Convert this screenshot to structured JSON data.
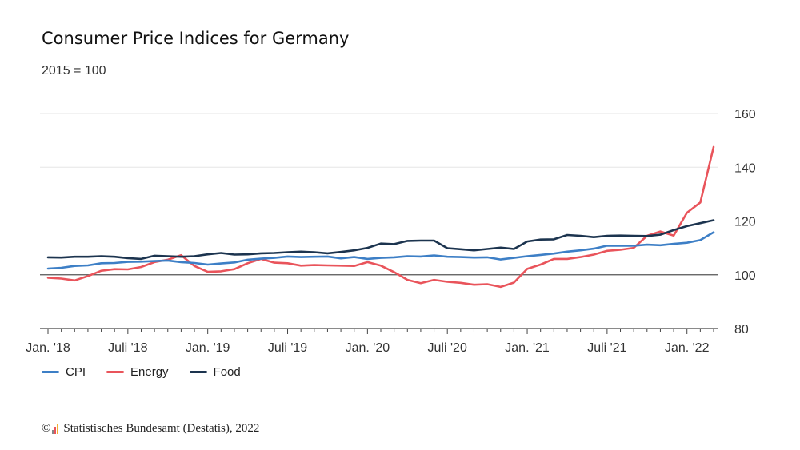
{
  "title": "Consumer Price Indices for Germany",
  "subtitle": "2015 = 100",
  "source": {
    "copyright_symbol": "©",
    "text": "Statistisches Bundesamt (Destatis), 2022"
  },
  "legend": [
    {
      "name": "CPI",
      "color": "#3d7fc6"
    },
    {
      "name": "Energy",
      "color": "#e9545b"
    },
    {
      "name": "Food",
      "color": "#1c344f"
    }
  ],
  "chart_data": {
    "type": "line",
    "title": "Consumer Price Indices for Germany",
    "subtitle": "2015 = 100",
    "ylim": [
      80,
      160
    ],
    "yticks": [
      80,
      100,
      120,
      140,
      160
    ],
    "y_axis_side": "right",
    "reference_line": 100,
    "grid": "horizontal",
    "legend_position": "bottom-left",
    "x": [
      "2018-01",
      "2018-02",
      "2018-03",
      "2018-04",
      "2018-05",
      "2018-06",
      "2018-07",
      "2018-08",
      "2018-09",
      "2018-10",
      "2018-11",
      "2018-12",
      "2019-01",
      "2019-02",
      "2019-03",
      "2019-04",
      "2019-05",
      "2019-06",
      "2019-07",
      "2019-08",
      "2019-09",
      "2019-10",
      "2019-11",
      "2019-12",
      "2020-01",
      "2020-02",
      "2020-03",
      "2020-04",
      "2020-05",
      "2020-06",
      "2020-07",
      "2020-08",
      "2020-09",
      "2020-10",
      "2020-11",
      "2020-12",
      "2021-01",
      "2021-02",
      "2021-03",
      "2021-04",
      "2021-05",
      "2021-06",
      "2021-07",
      "2021-08",
      "2021-09",
      "2021-10",
      "2021-11",
      "2021-12",
      "2022-01",
      "2022-02",
      "2022-03"
    ],
    "x_tick_labels": [
      {
        "label": "Jan. '18",
        "index": 0
      },
      {
        "label": "Juli '18",
        "index": 6
      },
      {
        "label": "Jan. '19",
        "index": 12
      },
      {
        "label": "Juli '19",
        "index": 18
      },
      {
        "label": "Jan. '20",
        "index": 24
      },
      {
        "label": "Juli '20",
        "index": 30
      },
      {
        "label": "Jan. '21",
        "index": 36
      },
      {
        "label": "Juli '21",
        "index": 42
      },
      {
        "label": "Jan. '22",
        "index": 48
      }
    ],
    "series": [
      {
        "name": "CPI",
        "color": "#3d7fc6",
        "values": [
          102.3,
          102.6,
          103.3,
          103.5,
          104.3,
          104.4,
          104.8,
          104.9,
          105.1,
          105.3,
          104.7,
          104.4,
          103.8,
          104.2,
          104.6,
          105.6,
          106.0,
          106.3,
          106.8,
          106.6,
          106.7,
          106.8,
          106.1,
          106.6,
          105.9,
          106.3,
          106.5,
          106.9,
          106.8,
          107.2,
          106.7,
          106.6,
          106.4,
          106.5,
          105.7,
          106.3,
          106.9,
          107.4,
          107.9,
          108.6,
          109.1,
          109.7,
          110.8,
          110.8,
          110.8,
          111.2,
          111.0,
          111.5,
          111.9,
          112.9,
          115.8
        ]
      },
      {
        "name": "Energy",
        "color": "#e9545b",
        "values": [
          98.9,
          98.6,
          97.9,
          99.5,
          101.5,
          102.1,
          102.0,
          102.9,
          104.7,
          105.6,
          107.3,
          103.3,
          101.1,
          101.3,
          102.1,
          104.3,
          105.9,
          104.5,
          104.3,
          103.4,
          103.6,
          103.5,
          103.4,
          103.3,
          104.7,
          103.4,
          101.0,
          98.1,
          96.9,
          98.1,
          97.4,
          97.0,
          96.3,
          96.5,
          95.5,
          97.1,
          102.2,
          103.8,
          105.9,
          105.9,
          106.6,
          107.5,
          108.9,
          109.3,
          110.0,
          114.5,
          116.1,
          114.6,
          123.1,
          126.9,
          147.5
        ]
      },
      {
        "name": "Food",
        "color": "#1c344f",
        "values": [
          106.5,
          106.4,
          106.7,
          106.7,
          106.9,
          106.7,
          106.2,
          105.9,
          107.1,
          106.9,
          106.7,
          106.9,
          107.6,
          108.1,
          107.5,
          107.6,
          108.0,
          108.1,
          108.4,
          108.6,
          108.4,
          108.0,
          108.5,
          109.1,
          110.0,
          111.6,
          111.4,
          112.6,
          112.7,
          112.7,
          109.9,
          109.5,
          109.1,
          109.6,
          110.1,
          109.6,
          112.4,
          113.1,
          113.2,
          114.8,
          114.5,
          114.0,
          114.5,
          114.6,
          114.5,
          114.4,
          114.9,
          116.6,
          118.1,
          119.2,
          120.3
        ]
      }
    ]
  }
}
